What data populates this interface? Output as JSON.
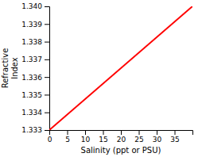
{
  "chart_data": {
    "type": "line",
    "xlabel": "Salinity (ppt or PSU)",
    "ylabel": "Refractive\nIndex",
    "x": [
      0,
      40
    ],
    "values": [
      1.333,
      1.34
    ],
    "color": "#ff0000",
    "xlim": [
      0,
      40
    ],
    "ylim": [
      1.333,
      1.34
    ],
    "xticks": [
      0,
      5,
      10,
      15,
      20,
      25,
      30,
      35
    ],
    "yticks": [
      1.333,
      1.334,
      1.335,
      1.336,
      1.337,
      1.338,
      1.339,
      {
        "value": 1.34,
        "label": "1.340"
      }
    ],
    "grid": false
  }
}
